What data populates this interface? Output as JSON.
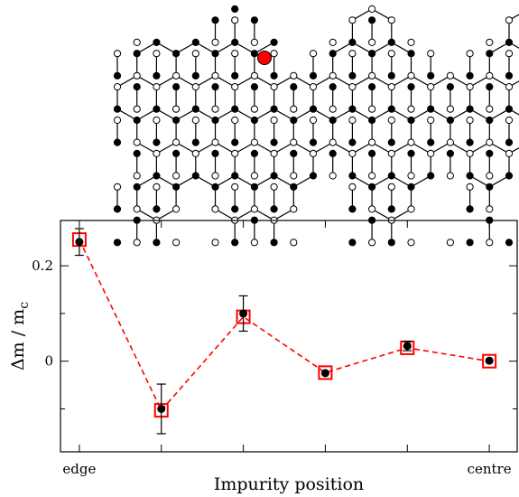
{
  "chart_data": [
    {
      "type": "diagram",
      "description_kind": "graphene-lattice-with-impurity",
      "colors": {
        "bond": "#000000",
        "sublattice_a": "#000000",
        "sublattice_b": "#ffffff",
        "impurity": "#ff0000"
      }
    },
    {
      "type": "scatter",
      "xlabel": "Impurity position",
      "ylabel_main": "Δm / m",
      "ylabel_sub": "c",
      "x_tick_labels": [
        {
          "x": 0,
          "label": "edge"
        },
        {
          "x": 5,
          "label": "centre"
        }
      ],
      "x_ticks": [
        0,
        1,
        2,
        3,
        4,
        5
      ],
      "y_ticks": [
        {
          "y": 0,
          "label": "0"
        },
        {
          "y": 0.2,
          "label": "0.2"
        }
      ],
      "xlim": [
        -0.23,
        5.34
      ],
      "ylim": [
        -0.19,
        0.295
      ],
      "grid": false,
      "series": [
        {
          "style": "filled-circle-with-error-bars",
          "color": "#000000",
          "x": [
            0,
            1,
            2,
            3,
            4,
            5
          ],
          "y": [
            0.25,
            -0.1,
            0.1,
            -0.025,
            0.032,
            0.001
          ],
          "err": [
            0.028,
            0.052,
            0.037,
            0.0,
            0.01,
            0.0
          ]
        },
        {
          "style": "open-square-dashed-line",
          "color": "#ff0000",
          "x": [
            0,
            1,
            2,
            3,
            4,
            5
          ],
          "y": [
            0.255,
            -0.103,
            0.093,
            -0.024,
            0.028,
            0.0
          ]
        }
      ]
    }
  ]
}
